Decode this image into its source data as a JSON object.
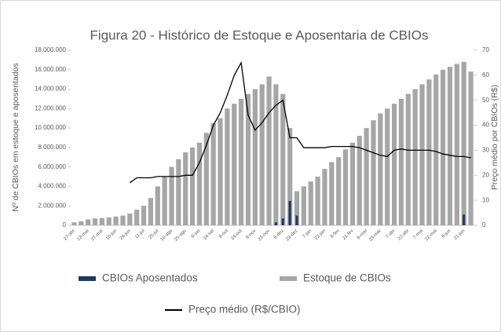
{
  "chart_data": {
    "type": "combo",
    "title": "Figura 20 - Histórico de Estoque e Aposentaria de CBIOs",
    "y_label": "Nº de CBIOs em estoque e aposentados",
    "y2_label": "Preço médio por CBIOs (R$)",
    "categories": [
      "27-abr",
      null,
      "13-mai",
      null,
      "27-mai",
      null,
      "10-jun",
      null,
      "26-jun",
      null,
      "11-jul",
      null,
      "25-jul",
      null,
      "10-ago",
      null,
      "25-ago",
      null,
      "9-set",
      null,
      "24-set",
      null,
      "9-out",
      null,
      "24-out",
      null,
      "8-nov",
      null,
      "23-nov",
      null,
      "8-dez",
      null,
      "23-dez",
      null,
      "7-jan",
      null,
      "22-jan",
      null,
      "6-fev",
      null,
      "21-fev",
      null,
      "8-mar",
      null,
      "23-mar",
      null,
      "7-abr",
      null,
      "22-abr",
      null,
      "7-mai",
      null,
      "22-mai",
      null,
      "6-jun",
      null,
      "21-jun",
      null
    ],
    "series": [
      {
        "name": "CBIOs Aposentados",
        "color": "#1f3864",
        "values": [
          0,
          0,
          0,
          0,
          0,
          0,
          0,
          0,
          0,
          0,
          0,
          0,
          0,
          0,
          0,
          0,
          0,
          0,
          0,
          0,
          0,
          0,
          0,
          0,
          0,
          0,
          0,
          0,
          0,
          300000,
          700000,
          2500000,
          1000000,
          0,
          0,
          0,
          0,
          0,
          0,
          0,
          0,
          0,
          0,
          0,
          0,
          0,
          0,
          0,
          0,
          0,
          0,
          0,
          0,
          0,
          0,
          0,
          1100000,
          0
        ]
      },
      {
        "name": "Estoque de CBIOs",
        "color": "#a6a6a6",
        "values": [
          300000,
          400000,
          600000,
          700000,
          750000,
          800000,
          900000,
          1000000,
          1200000,
          1600000,
          2000000,
          2800000,
          4000000,
          5000000,
          6000000,
          6800000,
          7500000,
          8000000,
          8500000,
          9500000,
          10500000,
          11000000,
          12000000,
          12500000,
          13000000,
          13500000,
          14000000,
          14500000,
          15300000,
          14500000,
          13500000,
          10000000,
          3500000,
          4000000,
          4500000,
          5000000,
          5800000,
          6500000,
          7000000,
          7800000,
          8500000,
          9200000,
          10000000,
          10800000,
          11500000,
          12000000,
          12500000,
          13000000,
          13500000,
          14000000,
          14500000,
          15000000,
          15500000,
          16000000,
          16300000,
          16600000,
          16800000,
          15800000
        ]
      },
      {
        "name": "Preço médio (R$/CBIO)",
        "color": "#000000",
        "axis": "y2",
        "values": [
          null,
          null,
          null,
          null,
          null,
          null,
          null,
          null,
          17,
          19,
          19,
          19,
          19.5,
          19.5,
          19.5,
          19.5,
          20,
          20,
          25,
          32,
          40,
          45,
          52,
          60,
          65,
          44,
          38,
          41,
          45,
          48,
          50,
          35,
          35,
          31,
          31,
          31,
          31,
          31.5,
          31.5,
          31.5,
          31.5,
          31,
          30,
          29,
          28,
          27.5,
          30,
          30.5,
          30,
          30,
          30,
          30,
          29.5,
          28.5,
          28,
          27.5,
          27.5,
          27
        ]
      }
    ],
    "ylim": [
      0,
      18000000
    ],
    "yticks": [
      0,
      {
        "value": 2000000,
        "label": "2.000.000"
      },
      {
        "value": 4000000,
        "label": "4.000.000"
      },
      {
        "value": 6000000,
        "label": "6.000.000"
      },
      {
        "value": 8000000,
        "label": "8.000.000"
      },
      {
        "value": 10000000,
        "label": "10.000.000"
      },
      {
        "value": 12000000,
        "label": "12.000.000"
      },
      {
        "value": 14000000,
        "label": "14.000.000"
      },
      {
        "value": 16000000,
        "label": "16.000.000"
      },
      {
        "value": 18000000,
        "label": "18.000.000"
      }
    ],
    "y2lim": [
      0,
      70
    ],
    "y2ticks": [
      0,
      10,
      20,
      30,
      40,
      50,
      60,
      70
    ],
    "grid": false,
    "legend": "bottom"
  }
}
